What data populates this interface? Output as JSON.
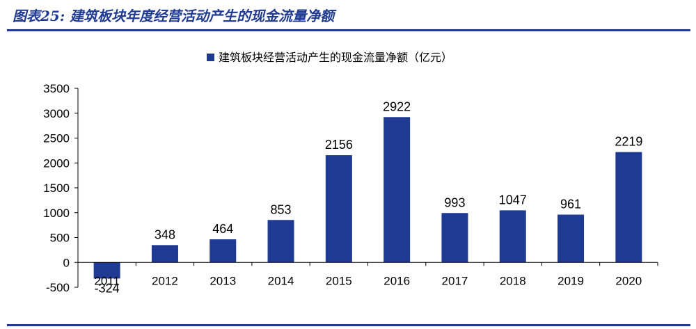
{
  "figure": {
    "label": "图表25:",
    "title": "建筑板块年度经营活动产生的现金流量净额"
  },
  "colors": {
    "bar": "#1f3a93",
    "title": "#1f3a93",
    "axis": "#000000",
    "text": "#000000"
  },
  "chart_data": {
    "type": "bar",
    "categories": [
      "2011",
      "2012",
      "2013",
      "2014",
      "2015",
      "2016",
      "2017",
      "2018",
      "2019",
      "2020"
    ],
    "series": [
      {
        "name": "建筑板块经营活动产生的现金流量净额（亿元）",
        "values": [
          -324,
          348,
          464,
          853,
          2156,
          2922,
          993,
          1047,
          961,
          2219
        ]
      }
    ],
    "ylim": [
      -500,
      3500
    ],
    "yticks": [
      -500,
      0,
      500,
      1000,
      1500,
      2000,
      2500,
      3000,
      3500
    ],
    "legend_position": "top-center",
    "grid": false,
    "data_labels": true
  }
}
